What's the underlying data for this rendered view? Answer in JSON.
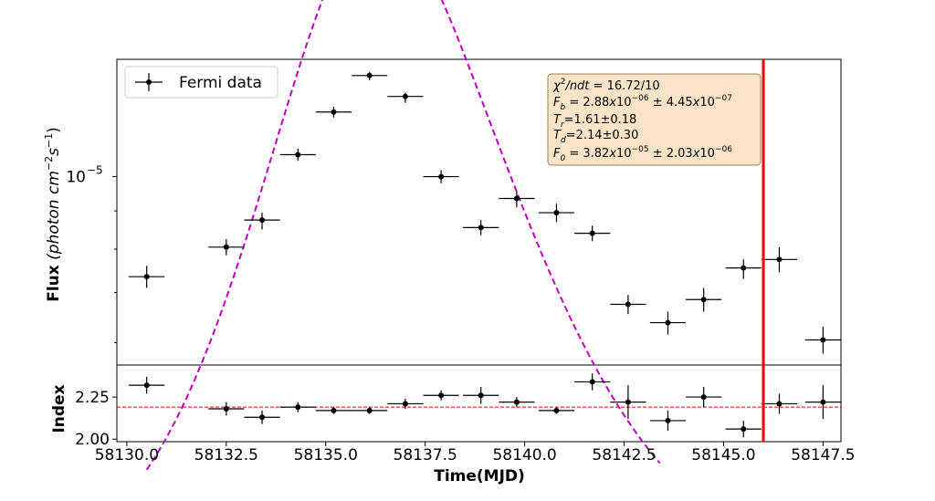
{
  "chart_data": [
    {
      "type": "scatter",
      "panel": "flux",
      "xlabel": "",
      "ylabel": "Flux (photon cm⁻²s⁻¹)",
      "ylabel_parts": {
        "bold": "Flux",
        "italic": "(photon cm",
        "sup1": "−2",
        "mid": "s",
        "sup2": "−1",
        "close": ")"
      },
      "yscale": "log",
      "xlim": [
        58129.75,
        58147.95
      ],
      "ylim": [
        5.6e-06,
        1.435e-05
      ],
      "ytick": {
        "value": 1e-05,
        "base": "10",
        "exp": "−5"
      },
      "legend": {
        "label": "Fermi data",
        "placement": "top-left"
      },
      "series": [
        {
          "name": "Fermi data",
          "x": [
            58130.5,
            58132.5,
            58133.4,
            58134.3,
            58135.2,
            58136.1,
            58137.0,
            58137.9,
            58138.9,
            58139.8,
            58140.8,
            58141.7,
            58142.6,
            58143.6,
            58144.5,
            58145.5,
            58146.4,
            58147.5
          ],
          "y": [
            7.35e-06,
            8.05e-06,
            8.75e-06,
            1.07e-05,
            1.22e-05,
            1.365e-05,
            1.28e-05,
            1e-05,
            8.55e-06,
            9.35e-06,
            8.95e-06,
            8.4e-06,
            6.75e-06,
            6.38e-06,
            6.85e-06,
            7.55e-06,
            7.75e-06,
            6.05e-06
          ],
          "xerr": [
            0.45,
            0.45,
            0.45,
            0.45,
            0.45,
            0.45,
            0.45,
            0.45,
            0.45,
            0.45,
            0.45,
            0.45,
            0.45,
            0.45,
            0.45,
            0.45,
            0.45,
            0.45
          ],
          "ylo": [
            7.1e-06,
            7.85e-06,
            8.5e-06,
            1.05e-05,
            1.2e-05,
            1.345e-05,
            1.255e-05,
            9.8e-06,
            8.35e-06,
            9.1e-06,
            8.7e-06,
            8.2e-06,
            6.55e-06,
            6.15e-06,
            6.6e-06,
            7.3e-06,
            7.45e-06,
            5.8e-06
          ],
          "yhi": [
            7.6e-06,
            8.25e-06,
            8.95e-06,
            1.09e-05,
            1.24e-05,
            1.38e-05,
            1.295e-05,
            1.02e-05,
            8.75e-06,
            9.55e-06,
            9.2e-06,
            8.6e-06,
            6.95e-06,
            6.6e-06,
            7.1e-06,
            7.75e-06,
            8.05e-06,
            6.3e-06
          ]
        }
      ],
      "fit_curve": {
        "style": "dashed",
        "color": "#c000c0",
        "x_range": [
          58130.5,
          58143.4
        ],
        "model": {
          "Fb": 2.88e-06,
          "Tr": 1.61,
          "Td": 2.14,
          "F0": 3.82e-05,
          "t0": 58136.1
        }
      },
      "vline": {
        "x": 58146.0,
        "color": "#ff0000"
      },
      "annotation_lines": [
        {
          "pre": "",
          "sym": "χ",
          "sup": "2",
          "sub": "",
          "italic": "/ndt",
          "rest": " = 16.72/10"
        },
        {
          "pre": "",
          "sym": "F",
          "sup": "",
          "sub": "b",
          "italic": "",
          "rest": " = 2.88x10⁻⁰⁶ ± 4.45x10⁻⁰⁷",
          "rest_parts": {
            "a": " = 2.88",
            "ax": "x",
            "a10": "10",
            "ae": "−06",
            "b": " ± 4.45",
            "bx": "x",
            "b10": "10",
            "be": "−07"
          }
        },
        {
          "pre": "",
          "sym": "T",
          "sup": "",
          "sub": "r",
          "italic": "",
          "rest": "=1.61±0.18"
        },
        {
          "pre": "",
          "sym": "T",
          "sup": "",
          "sub": "d",
          "italic": "",
          "rest": "=2.14±0.30"
        },
        {
          "pre": "",
          "sym": "F",
          "sup": "",
          "sub": "0",
          "italic": "",
          "rest": " = 3.82x10⁻⁰⁵ ± 2.03x10⁻⁰⁶",
          "rest_parts": {
            "a": " = 3.82",
            "ax": "x",
            "a10": "10",
            "ae": "−05",
            "b": " ± 2.03",
            "bx": "x",
            "b10": "10",
            "be": "−06"
          }
        }
      ]
    },
    {
      "type": "scatter",
      "panel": "index",
      "xlabel": "Time(MJD)",
      "ylabel": "Index",
      "xlim": [
        58129.75,
        58147.95
      ],
      "ylim": [
        1.985,
        2.44
      ],
      "xticks": [
        58130.0,
        58132.5,
        58135.0,
        58137.5,
        58140.0,
        58142.5,
        58145.0,
        58147.5
      ],
      "xtick_labels": [
        "58130.0",
        "58132.5",
        "58135.0",
        "58137.5",
        "58140.0",
        "58142.5",
        "58145.0",
        "58147.5"
      ],
      "yticks": [
        2.0,
        2.25
      ],
      "ytick_labels": [
        "2.00",
        "2.25"
      ],
      "hline": {
        "y": 2.19,
        "style": "dashed",
        "color": "#dd0000"
      },
      "vline": {
        "x": 58146.0,
        "color": "#ff0000"
      },
      "series": [
        {
          "name": "",
          "x": [
            58130.5,
            58132.5,
            58133.4,
            58134.3,
            58135.2,
            58136.1,
            58137.0,
            58137.9,
            58138.9,
            58139.8,
            58140.8,
            58141.7,
            58142.6,
            58143.6,
            58144.5,
            58145.5,
            58146.4,
            58147.5
          ],
          "y": [
            2.32,
            2.18,
            2.13,
            2.19,
            2.17,
            2.17,
            2.21,
            2.26,
            2.26,
            2.22,
            2.17,
            2.34,
            2.22,
            2.11,
            2.25,
            2.06,
            2.21,
            2.22
          ],
          "xerr": [
            0.45,
            0.45,
            0.45,
            0.45,
            0.45,
            0.45,
            0.45,
            0.45,
            0.45,
            0.45,
            0.45,
            0.45,
            0.45,
            0.45,
            0.45,
            0.45,
            0.45,
            0.45
          ],
          "yerr": [
            0.05,
            0.04,
            0.04,
            0.03,
            0.02,
            0.02,
            0.03,
            0.03,
            0.05,
            0.03,
            0.02,
            0.05,
            0.1,
            0.06,
            0.06,
            0.05,
            0.06,
            0.1
          ]
        }
      ]
    }
  ]
}
